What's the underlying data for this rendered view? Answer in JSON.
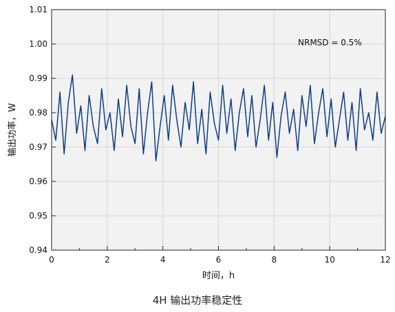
{
  "caption": "4H 输出功率稳定性",
  "chart_data": {
    "type": "line",
    "xlabel": "时间，h",
    "ylabel": "输出功率，W",
    "xlim": [
      0,
      12
    ],
    "ylim": [
      0.94,
      1.01
    ],
    "x_ticks": [
      0,
      2,
      4,
      6,
      8,
      10,
      12
    ],
    "y_ticks": [
      0.94,
      0.95,
      0.96,
      0.97,
      0.98,
      0.99,
      1.0,
      1.01
    ],
    "x_tick_labels": [
      "0",
      "2",
      "4",
      "6",
      "8",
      "10",
      "12"
    ],
    "y_tick_labels": [
      "0.94",
      "0.95",
      "0.96",
      "0.97",
      "0.98",
      "0.99",
      "1.00",
      "1.01"
    ],
    "grid": true,
    "annotation": "NRMSD = 0.5%",
    "series": [
      {
        "color": "#0b3d86",
        "x": [
          0.0,
          0.15,
          0.3,
          0.45,
          0.6,
          0.75,
          0.9,
          1.05,
          1.2,
          1.35,
          1.5,
          1.65,
          1.8,
          1.95,
          2.1,
          2.25,
          2.4,
          2.55,
          2.7,
          2.85,
          3.0,
          3.15,
          3.3,
          3.45,
          3.6,
          3.75,
          3.9,
          4.05,
          4.2,
          4.35,
          4.5,
          4.65,
          4.8,
          4.95,
          5.1,
          5.25,
          5.4,
          5.55,
          5.7,
          5.85,
          6.0,
          6.15,
          6.3,
          6.45,
          6.6,
          6.75,
          6.9,
          7.05,
          7.2,
          7.35,
          7.5,
          7.65,
          7.8,
          7.95,
          8.1,
          8.25,
          8.4,
          8.55,
          8.7,
          8.85,
          9.0,
          9.15,
          9.3,
          9.45,
          9.6,
          9.75,
          9.9,
          10.05,
          10.2,
          10.35,
          10.5,
          10.65,
          10.8,
          10.95,
          11.1,
          11.25,
          11.4,
          11.55,
          11.7,
          11.85,
          12.0
        ],
        "values": [
          0.978,
          0.972,
          0.986,
          0.968,
          0.983,
          0.991,
          0.974,
          0.982,
          0.969,
          0.985,
          0.976,
          0.971,
          0.987,
          0.975,
          0.98,
          0.969,
          0.984,
          0.973,
          0.988,
          0.976,
          0.971,
          0.987,
          0.968,
          0.98,
          0.989,
          0.966,
          0.976,
          0.985,
          0.972,
          0.988,
          0.978,
          0.97,
          0.983,
          0.975,
          0.989,
          0.971,
          0.981,
          0.968,
          0.986,
          0.977,
          0.972,
          0.988,
          0.974,
          0.984,
          0.969,
          0.98,
          0.987,
          0.973,
          0.985,
          0.97,
          0.978,
          0.988,
          0.972,
          0.983,
          0.967,
          0.979,
          0.986,
          0.974,
          0.981,
          0.969,
          0.985,
          0.976,
          0.988,
          0.971,
          0.98,
          0.987,
          0.973,
          0.984,
          0.97,
          0.978,
          0.986,
          0.972,
          0.983,
          0.969,
          0.987,
          0.975,
          0.98,
          0.972,
          0.986,
          0.974,
          0.979
        ]
      }
    ]
  }
}
